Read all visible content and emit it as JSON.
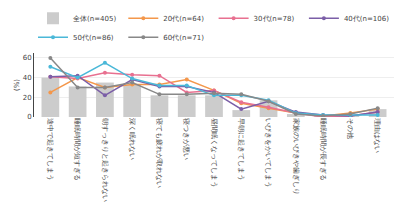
{
  "chart_data": {
    "type": "bar",
    "ylabel": "(%)",
    "categories": [
      "途中で起きてしまう",
      "睡眠時間が短すぎる",
      "朝すっきりと起きられない",
      "深く眠れない",
      "寝ても疲れが取れない",
      "寝つきが悪い",
      "昼間眠くなってしまう",
      "早朝に起きてしまう",
      "いびきをかいてしまう",
      "家族のいびきや歯ぎしり",
      "睡眠時間が長すぎる",
      "その他",
      "理由はない"
    ],
    "series": [
      {
        "name": "全体(n=405)",
        "type": "bar",
        "color": "#cccccc",
        "values": [
          40,
          31,
          35,
          33,
          22,
          22,
          22,
          7,
          17,
          3,
          1,
          2,
          8
        ]
      },
      {
        "name": "20代(n=64)",
        "type": "line",
        "marker": "circle",
        "color": "#f4974b",
        "values": [
          25,
          40,
          30,
          33,
          33,
          38,
          27,
          14,
          9,
          4,
          1,
          4,
          8
        ]
      },
      {
        "name": "30代(n=78)",
        "type": "line",
        "marker": "circle",
        "color": "#e87090",
        "values": [
          41,
          39,
          45,
          43,
          42,
          25,
          27,
          15,
          10,
          4,
          0,
          1,
          5
        ]
      },
      {
        "name": "40代(n=106)",
        "type": "line",
        "marker": "circle",
        "color": "#7b5ea7",
        "values": [
          41,
          42,
          22,
          38,
          31,
          31,
          25,
          8,
          16,
          5,
          2,
          1,
          5
        ]
      },
      {
        "name": "50代(n=86)",
        "type": "line",
        "marker": "circle",
        "color": "#4ab8d8",
        "values": [
          51,
          40,
          55,
          39,
          32,
          32,
          22,
          22,
          17,
          4,
          2,
          2,
          2
        ]
      },
      {
        "name": "60代(n=71)",
        "type": "line",
        "marker": "circle",
        "color": "#888888",
        "values": [
          60,
          30,
          30,
          35,
          23,
          23,
          24,
          23,
          16,
          3,
          1,
          3,
          9
        ]
      }
    ],
    "ylim": [
      0,
      65
    ],
    "yticks": [
      0,
      20,
      40,
      60
    ],
    "grid": true,
    "legend": "top"
  }
}
